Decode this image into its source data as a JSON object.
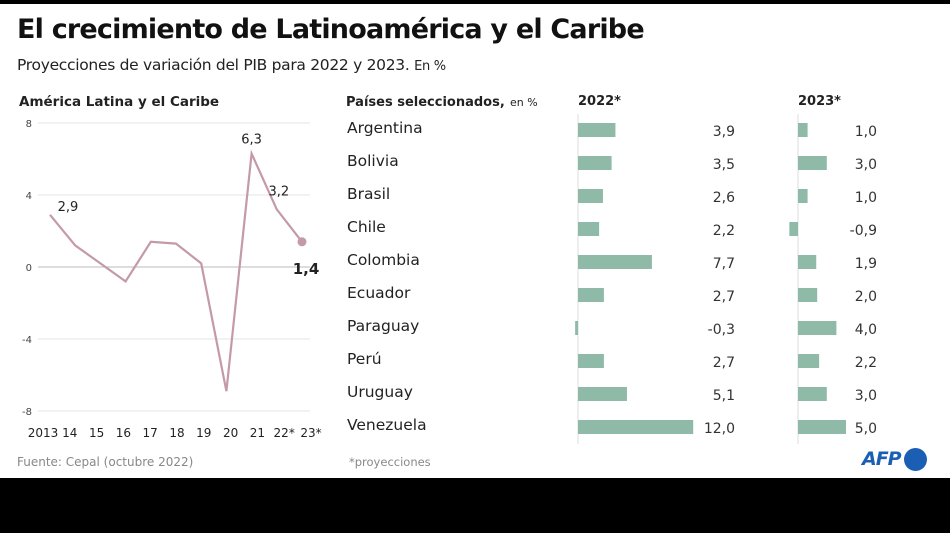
{
  "title": "El crecimiento de Latinoamérica y el Caribe",
  "subtitle": "Proyecciones de variación del PIB para 2022 y 2023.",
  "subtitle_unit": "En %",
  "source": "Fuente: Cepal (octubre 2022)",
  "footnote": "*proyecciones",
  "logo": "AFP",
  "colors": {
    "line": "#c49aa6",
    "bar": "#8fbaa8",
    "logo": "#1a5fb4"
  },
  "chart_data": [
    {
      "type": "line",
      "title": "América Latina y el Caribe",
      "x": [
        "2013",
        "14",
        "15",
        "16",
        "17",
        "18",
        "19",
        "20",
        "21",
        "22*",
        "23*"
      ],
      "values": [
        2.9,
        1.2,
        0.2,
        -0.8,
        1.4,
        1.3,
        0.2,
        -6.9,
        6.3,
        3.2,
        1.4
      ],
      "labels": [
        {
          "index": 0,
          "text": "2,9"
        },
        {
          "index": 8,
          "text": "6,3"
        },
        {
          "index": 9,
          "text": "3,2"
        },
        {
          "index": 10,
          "text": "1,4"
        }
      ],
      "yticks": [
        8,
        4,
        0,
        -4,
        -8
      ],
      "ylim": [
        -8,
        8
      ],
      "grid": true
    },
    {
      "type": "bar",
      "title": "Países seleccionados,",
      "title_unit": "en %",
      "categories": [
        "Argentina",
        "Bolivia",
        "Brasil",
        "Chile",
        "Colombia",
        "Ecuador",
        "Paraguay",
        "Perú",
        "Uruguay",
        "Venezuela"
      ],
      "series": [
        {
          "name": "2022*",
          "values": [
            3.9,
            3.5,
            2.6,
            2.2,
            7.7,
            2.7,
            -0.3,
            2.7,
            5.1,
            12.0
          ],
          "labels": [
            "3,9",
            "3,5",
            "2,6",
            "2,2",
            "7,7",
            "2,7",
            "-0,3",
            "2,7",
            "5,1",
            "12,0"
          ]
        },
        {
          "name": "2023*",
          "values": [
            1.0,
            3.0,
            1.0,
            -0.9,
            1.9,
            2.0,
            4.0,
            2.2,
            3.0,
            5.0
          ],
          "labels": [
            "1,0",
            "3,0",
            "1,0",
            "-0,9",
            "1,9",
            "2,0",
            "4,0",
            "2,2",
            "3,0",
            "5,0"
          ]
        }
      ]
    }
  ]
}
